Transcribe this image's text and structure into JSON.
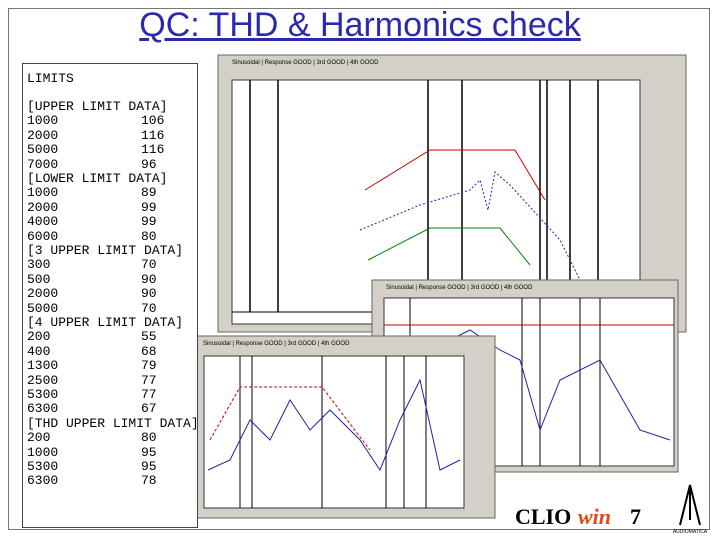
{
  "title": "QC: THD & Harmonics check",
  "limits": {
    "title": "LIMITS",
    "sections": [
      {
        "heading": "[UPPER LIMIT DATA]",
        "rows": [
          [
            "1000",
            "106"
          ],
          [
            "2000",
            "116"
          ],
          [
            "5000",
            "116"
          ],
          [
            "7000",
            "96"
          ]
        ]
      },
      {
        "heading": "[LOWER LIMIT DATA]",
        "rows": [
          [
            "1000",
            "89"
          ],
          [
            "2000",
            "99"
          ],
          [
            "4000",
            "99"
          ],
          [
            "6000",
            "80"
          ]
        ]
      },
      {
        "heading": "[3 UPPER LIMIT DATA]",
        "rows": [
          [
            "300",
            "70"
          ],
          [
            "500",
            "90"
          ],
          [
            "2000",
            "90"
          ],
          [
            "5000",
            "70"
          ]
        ]
      },
      {
        "heading": "[4 UPPER LIMIT DATA]",
        "rows": [
          [
            "200",
            "55"
          ],
          [
            "400",
            "68"
          ],
          [
            "1300",
            "79"
          ],
          [
            "2500",
            "77"
          ],
          [
            "5300",
            "77"
          ],
          [
            "6300",
            "67"
          ]
        ]
      },
      {
        "heading": "[THD UPPER LIMIT DATA]",
        "rows": [
          [
            "200",
            "80"
          ],
          [
            "1000",
            "95"
          ],
          [
            "5300",
            "95"
          ],
          [
            "6300",
            "78"
          ]
        ]
      }
    ]
  },
  "windows": [
    {
      "tabs": "Sinusoidal | Response GOOD | 3rd GOOD | 4th GOOD"
    },
    {
      "tabs": "Sinusoidal | Response GOOD | 3rd GOOD | 4th GOOD"
    },
    {
      "tabs": "Sinusoidal | Response GOOD | 3rd GOOD | 4th GOOD"
    }
  ],
  "logo": {
    "clio": "CLIO",
    "win": "win",
    "version": "7",
    "brand": "AUDIOMATICA"
  }
}
